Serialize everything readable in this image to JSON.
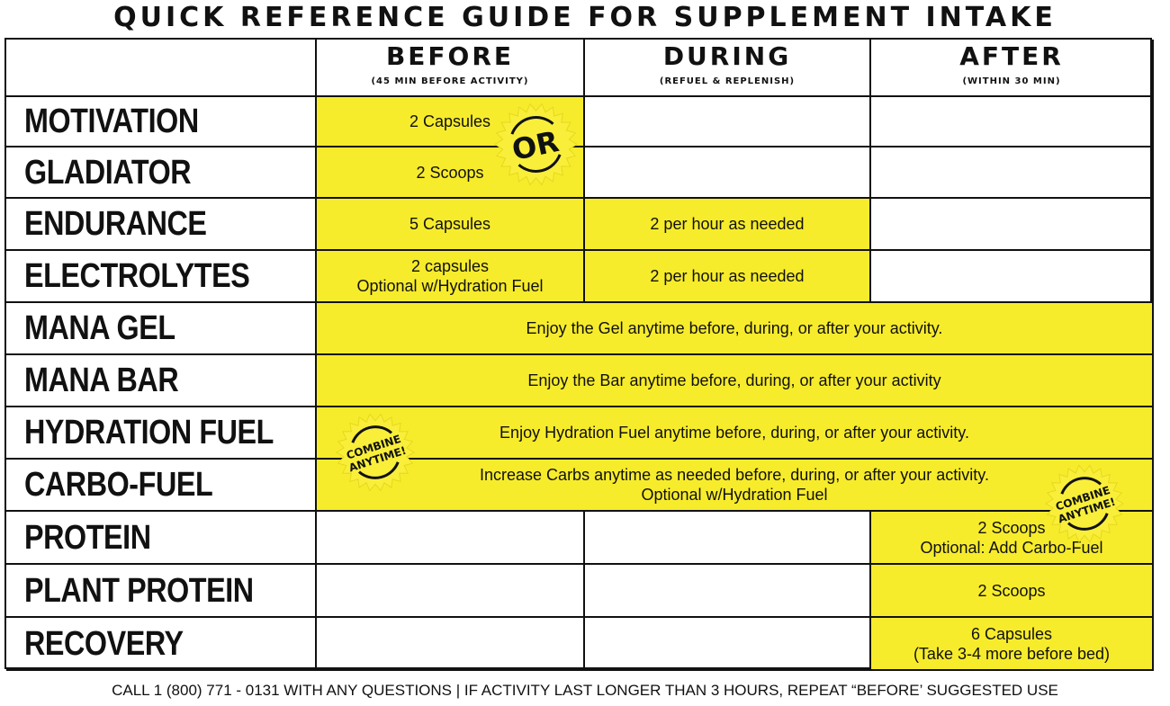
{
  "title": "QUICK REFERENCE GUIDE FOR SUPPLEMENT INTAKE",
  "columns": [
    {
      "label": "BEFORE",
      "sub": "(45 MIN BEFORE ACTIVITY)"
    },
    {
      "label": "DURING",
      "sub": "(REFUEL & REPLENISH)"
    },
    {
      "label": "AFTER",
      "sub": "(WITHIN 30 MIN)"
    }
  ],
  "rows": [
    {
      "label": "MOTIVATION",
      "cells": [
        {
          "text": "2 Capsules",
          "yellow": true
        },
        {
          "text": "",
          "yellow": false
        },
        {
          "text": "",
          "yellow": false
        }
      ]
    },
    {
      "label": "GLADIATOR",
      "cells": [
        {
          "text": "2 Scoops",
          "yellow": true
        },
        {
          "text": "",
          "yellow": false
        },
        {
          "text": "",
          "yellow": false
        }
      ]
    },
    {
      "label": "ENDURANCE",
      "cells": [
        {
          "text": "5 Capsules",
          "yellow": true
        },
        {
          "text": "2 per hour as needed",
          "yellow": true
        },
        {
          "text": "",
          "yellow": false
        }
      ]
    },
    {
      "label": "ELECTROLYTES",
      "cells": [
        {
          "text": "2 capsules\nOptional w/Hydration Fuel",
          "yellow": true
        },
        {
          "text": "2 per hour as needed",
          "yellow": true
        },
        {
          "text": "",
          "yellow": false
        }
      ]
    },
    {
      "label": "MANA GEL",
      "cells": [
        {
          "text": "Enjoy the Gel anytime before, during, or after your activity.",
          "yellow": true,
          "span": 3
        }
      ]
    },
    {
      "label": "MANA BAR",
      "cells": [
        {
          "text": "Enjoy the Bar anytime before, during, or after your activity",
          "yellow": true,
          "span": 3
        }
      ]
    },
    {
      "label": "HYDRATION FUEL",
      "cells": [
        {
          "text": "Enjoy Hydration Fuel anytime before, during, or after your activity.",
          "yellow": true,
          "span": 3
        }
      ]
    },
    {
      "label": "CARBO-FUEL",
      "cells": [
        {
          "text": "Increase Carbs anytime as needed before, during, or after your activity.\nOptional w/Hydration Fuel",
          "yellow": true,
          "span": 3
        }
      ]
    },
    {
      "label": "PROTEIN",
      "cells": [
        {
          "text": "",
          "yellow": false
        },
        {
          "text": "",
          "yellow": false
        },
        {
          "text": "2 Scoops\nOptional: Add Carbo-Fuel",
          "yellow": true
        }
      ]
    },
    {
      "label": "PLANT PROTEIN",
      "cells": [
        {
          "text": "",
          "yellow": false
        },
        {
          "text": "",
          "yellow": false
        },
        {
          "text": "2 Scoops",
          "yellow": true
        }
      ]
    },
    {
      "label": "RECOVERY",
      "cells": [
        {
          "text": "",
          "yellow": false
        },
        {
          "text": "",
          "yellow": false
        },
        {
          "text": "6 Capsules\n(Take 3-4 more before bed)",
          "yellow": true
        }
      ]
    }
  ],
  "badges": {
    "or": {
      "text": "OR",
      "icon": "starburst-icon"
    },
    "combine_left": {
      "line1": "COMBINE",
      "line2": "ANYTIME!",
      "icon": "starburst-icon"
    },
    "combine_right": {
      "line1": "COMBINE",
      "line2": "ANYTIME!",
      "icon": "starburst-icon"
    }
  },
  "footer": "CALL 1 (800) 771 - 0131 WITH ANY QUESTIONS | IF ACTIVITY LAST LONGER THAN 3 HOURS, REPEAT “BEFORE’ SUGGESTED USE",
  "colors": {
    "highlight": "#f7ec2b",
    "border": "#111111"
  }
}
